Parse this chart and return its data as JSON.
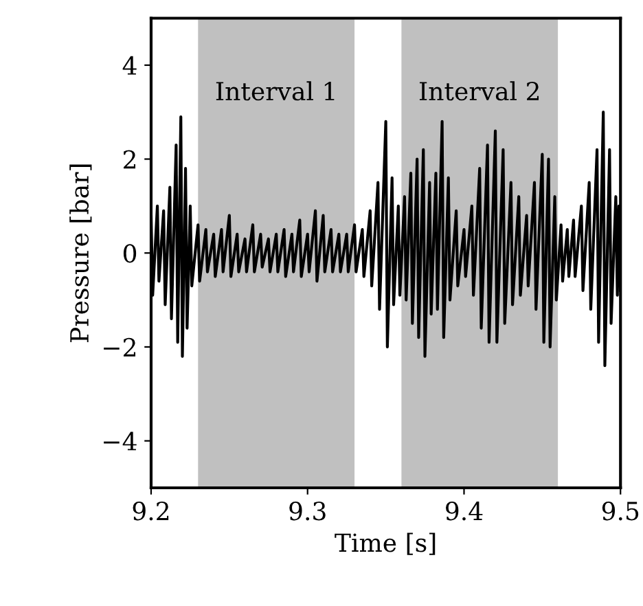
{
  "chart_data": {
    "type": "line",
    "xlabel": "Time [s]",
    "ylabel": "Pressure [bar]",
    "xlim": [
      9.2,
      9.5
    ],
    "xticks": [
      9.2,
      9.3,
      9.4,
      9.5
    ],
    "ylim": [
      -5,
      5
    ],
    "yticks": [
      {
        "value": -4,
        "label": "−4"
      },
      {
        "value": -2,
        "label": "−2"
      },
      0,
      2,
      4
    ],
    "grid": false,
    "legend": false,
    "bands": [
      {
        "axis": "x",
        "from": 9.23,
        "to": 9.33,
        "label": "Interval 1",
        "color": "#c0c0c0"
      },
      {
        "axis": "x",
        "from": 9.36,
        "to": 9.46,
        "label": "Interval 2",
        "color": "#c0c0c0"
      }
    ],
    "series": [
      {
        "color": "#000000",
        "x": [
          9.2,
          9.201,
          9.204,
          9.205,
          9.208,
          9.209,
          9.212,
          9.213,
          9.216,
          9.217,
          9.219,
          9.22,
          9.222,
          9.223,
          9.225,
          9.226,
          9.23,
          9.231,
          9.235,
          9.236,
          9.24,
          9.241,
          9.245,
          9.246,
          9.25,
          9.251,
          9.255,
          9.256,
          9.26,
          9.261,
          9.265,
          9.266,
          9.27,
          9.271,
          9.275,
          9.276,
          9.28,
          9.281,
          9.285,
          9.286,
          9.29,
          9.291,
          9.295,
          9.296,
          9.3,
          9.301,
          9.305,
          9.306,
          9.31,
          9.311,
          9.315,
          9.316,
          9.32,
          9.321,
          9.325,
          9.326,
          9.33,
          9.331,
          9.335,
          9.336,
          9.34,
          9.341,
          9.345,
          9.346,
          9.35,
          9.351,
          9.354,
          9.355,
          9.358,
          9.359,
          9.362,
          9.363,
          9.366,
          9.367,
          9.37,
          9.371,
          9.374,
          9.375,
          9.378,
          9.379,
          9.382,
          9.383,
          9.386,
          9.387,
          9.39,
          9.391,
          9.395,
          9.396,
          9.4,
          9.401,
          9.405,
          9.406,
          9.41,
          9.411,
          9.415,
          9.416,
          9.42,
          9.421,
          9.425,
          9.426,
          9.43,
          9.431,
          9.435,
          9.436,
          9.44,
          9.441,
          9.445,
          9.446,
          9.45,
          9.451,
          9.454,
          9.455,
          9.458,
          9.459,
          9.462,
          9.463,
          9.466,
          9.467,
          9.47,
          9.471,
          9.475,
          9.476,
          9.48,
          9.481,
          9.485,
          9.486,
          9.489,
          9.49,
          9.493,
          9.494,
          9.497,
          9.498,
          9.499,
          9.5
        ],
        "values": [
          0.8,
          -0.9,
          1.0,
          -0.6,
          0.9,
          -1.1,
          1.4,
          -1.4,
          2.3,
          -1.9,
          2.9,
          -2.2,
          1.8,
          -1.6,
          1.0,
          -0.7,
          0.6,
          -0.6,
          0.5,
          -0.4,
          0.4,
          -0.5,
          0.5,
          -0.4,
          0.8,
          -0.5,
          0.4,
          -0.4,
          0.3,
          -0.4,
          0.6,
          -0.4,
          0.4,
          -0.3,
          0.3,
          -0.4,
          0.4,
          -0.4,
          0.5,
          -0.5,
          0.4,
          -0.4,
          0.7,
          -0.5,
          0.4,
          -0.4,
          0.9,
          -0.6,
          0.8,
          -0.4,
          0.5,
          -0.4,
          0.4,
          -0.4,
          0.4,
          -0.4,
          0.6,
          -0.4,
          0.5,
          -0.5,
          0.9,
          -0.7,
          1.5,
          -1.2,
          2.8,
          -2.0,
          1.6,
          -1.1,
          1.0,
          -0.9,
          1.2,
          -1.0,
          1.7,
          -1.5,
          2.0,
          -1.8,
          2.2,
          -2.2,
          1.5,
          -1.3,
          1.7,
          -1.2,
          2.8,
          -1.8,
          1.6,
          -1.0,
          0.9,
          -0.7,
          0.5,
          -0.5,
          1.0,
          -0.9,
          1.8,
          -1.6,
          2.3,
          -1.9,
          2.6,
          -1.9,
          2.2,
          -1.5,
          1.5,
          -1.1,
          1.2,
          -0.9,
          0.8,
          -0.7,
          1.5,
          -1.2,
          2.1,
          -1.9,
          2.0,
          -2.0,
          1.2,
          -1.0,
          0.6,
          -0.6,
          0.5,
          -0.5,
          0.7,
          -0.5,
          1.0,
          -0.8,
          1.5,
          -1.2,
          2.2,
          -1.9,
          3.0,
          -2.4,
          2.2,
          -1.5,
          1.2,
          -0.9,
          1.0,
          -0.8
        ]
      }
    ]
  }
}
